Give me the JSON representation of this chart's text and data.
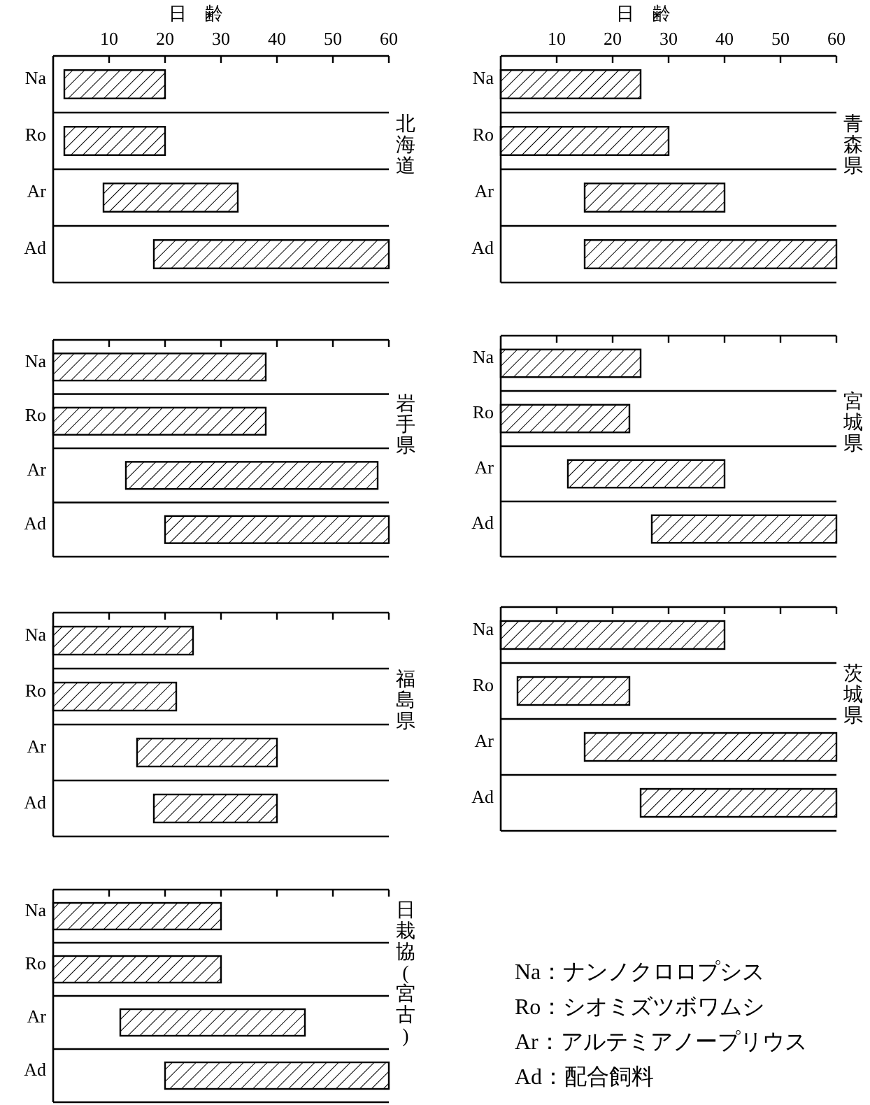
{
  "chart_data": [
    {
      "type": "bar",
      "orientation": "horizontal",
      "title": "北海道",
      "xlabel": "日　齢",
      "categories": [
        "Na",
        "Ro",
        "Ar",
        "Ad"
      ],
      "base": [
        2,
        2,
        9,
        18
      ],
      "values": [
        18,
        18,
        24,
        42
      ],
      "color": "#000000",
      "xlim": [
        0,
        60
      ],
      "xticks": [
        10,
        20,
        30,
        40,
        50,
        60
      ]
    },
    {
      "type": "bar",
      "orientation": "horizontal",
      "title": "青森県",
      "xlabel": "日　齢",
      "categories": [
        "Na",
        "Ro",
        "Ar",
        "Ad"
      ],
      "base": [
        0,
        0,
        15,
        15
      ],
      "values": [
        25,
        30,
        25,
        45
      ],
      "color": "#000000",
      "xlim": [
        0,
        60
      ],
      "xticks": [
        10,
        20,
        30,
        40,
        50,
        60
      ]
    },
    {
      "type": "bar",
      "orientation": "horizontal",
      "title": "岩手県",
      "categories": [
        "Na",
        "Ro",
        "Ar",
        "Ad"
      ],
      "base": [
        0,
        0,
        13,
        20
      ],
      "values": [
        38,
        38,
        45,
        40
      ],
      "color": "#000000",
      "xlim": [
        0,
        60
      ],
      "xticks": [
        10,
        20,
        30,
        40,
        50,
        60
      ],
      "tick_labels": "y"
    },
    {
      "type": "bar",
      "orientation": "horizontal",
      "title": "宮城県",
      "categories": [
        "Na",
        "Ro",
        "Ar",
        "Ad"
      ],
      "base": [
        0,
        0,
        12,
        27
      ],
      "values": [
        25,
        23,
        28,
        33
      ],
      "color": "#000000",
      "xlim": [
        0,
        60
      ],
      "xticks": [
        10,
        20,
        30,
        40,
        50,
        60
      ],
      "tick_labels": "y"
    },
    {
      "type": "bar",
      "orientation": "horizontal",
      "title": "福島県",
      "categories": [
        "Na",
        "Ro",
        "Ar",
        "Ad"
      ],
      "base": [
        0,
        0,
        15,
        18
      ],
      "values": [
        25,
        22,
        25,
        22
      ],
      "color": "#000000",
      "xlim": [
        0,
        60
      ],
      "xticks": [
        10,
        20,
        30,
        40,
        50,
        60
      ],
      "tick_labels": "y"
    },
    {
      "type": "bar",
      "orientation": "horizontal",
      "title": "茨城県",
      "categories": [
        "Na",
        "Ro",
        "Ar",
        "Ad"
      ],
      "base": [
        0,
        3,
        15,
        25
      ],
      "values": [
        40,
        20,
        45,
        35
      ],
      "color": "#000000",
      "xlim": [
        0,
        60
      ],
      "xticks": [
        10,
        20,
        30,
        40,
        50,
        60
      ],
      "tick_labels": "y"
    },
    {
      "type": "bar",
      "orientation": "horizontal",
      "title": "日栽協(宮古)",
      "categories": [
        "Na",
        "Ro",
        "Ar",
        "Ad"
      ],
      "base": [
        0,
        0,
        12,
        20
      ],
      "values": [
        30,
        30,
        33,
        40
      ],
      "color": "#000000",
      "xlim": [
        0,
        60
      ],
      "xticks": [
        10,
        20,
        30,
        40,
        50,
        60
      ],
      "tick_labels": "y"
    },
    {
      "type": "other",
      "annotations": [
        "Na：ナンノクロロプシス",
        "Ro：シオミズツボワムシ",
        "Ar：アルテミアノープリウス",
        "Ad：配合飼料"
      ]
    }
  ]
}
